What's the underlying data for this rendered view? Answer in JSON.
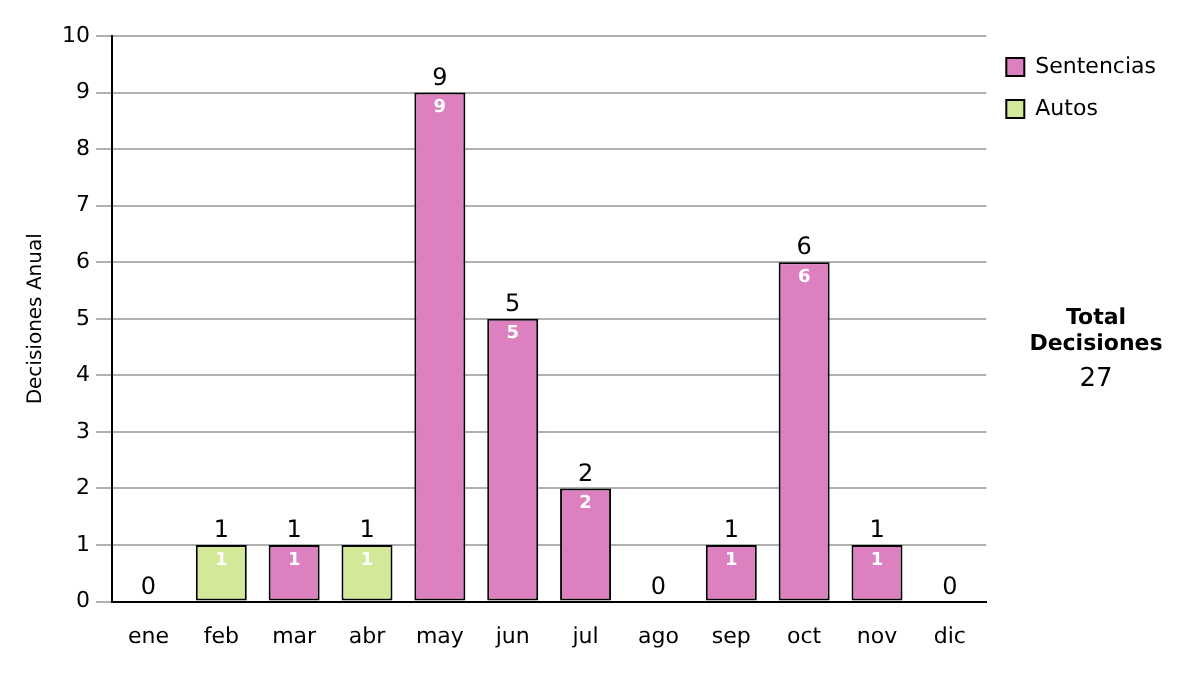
{
  "chart_data": {
    "type": "bar",
    "ylabel": "Decisiones Anual",
    "categories": [
      "ene",
      "feb",
      "mar",
      "abr",
      "may",
      "jun",
      "jul",
      "ago",
      "sep",
      "oct",
      "nov",
      "dic"
    ],
    "series": [
      {
        "name": "Sentencias",
        "color": "#dd80c0",
        "values": [
          0,
          0,
          1,
          0,
          9,
          5,
          2,
          0,
          1,
          6,
          1,
          0
        ],
        "value_labels": [
          null,
          null,
          "1",
          null,
          "9",
          "5",
          "2",
          null,
          "1",
          "6",
          "1",
          null
        ]
      },
      {
        "name": "Autos",
        "color": "#d4e89a",
        "values": [
          0,
          1,
          0,
          1,
          0,
          0,
          0,
          0,
          0,
          0,
          0,
          0
        ],
        "value_labels": [
          null,
          "1",
          null,
          "1",
          null,
          null,
          null,
          null,
          null,
          null,
          null,
          null
        ]
      }
    ],
    "stacked": true,
    "totals": [
      "0",
      "1",
      "1",
      "1",
      "9",
      "5",
      "2",
      "0",
      "1",
      "6",
      "1",
      "0"
    ],
    "ylim": [
      0,
      10
    ],
    "yticks": [
      0,
      1,
      2,
      3,
      4,
      5,
      6,
      7,
      8,
      9,
      10
    ],
    "grid": "y",
    "legend": "right",
    "annotations": [
      "Total Decisiones",
      "27"
    ]
  }
}
